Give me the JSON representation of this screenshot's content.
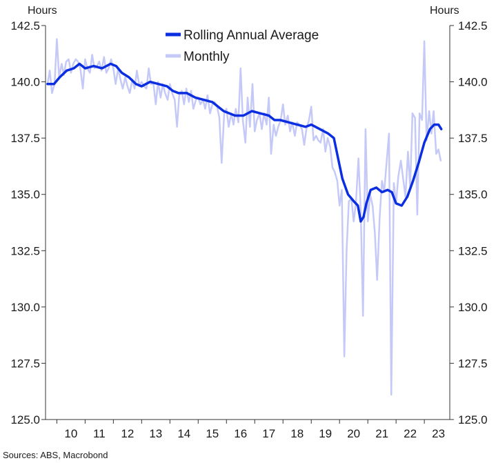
{
  "chart_data": {
    "type": "line",
    "title": "",
    "y_unit_left": "Hours",
    "y_unit_right": "Hours",
    "ylim": [
      125.0,
      142.5
    ],
    "yticks": [
      "125.0",
      "127.5",
      "130.0",
      "132.5",
      "135.0",
      "137.5",
      "140.0",
      "142.5"
    ],
    "xlim": [
      2009.6,
      2023.9
    ],
    "xticks": [
      "10",
      "11",
      "12",
      "13",
      "14",
      "15",
      "16",
      "17",
      "18",
      "19",
      "20",
      "21",
      "22",
      "23"
    ],
    "legend_position": "top-center",
    "grid": false,
    "source": "Sources: ABS, Macrobond",
    "series": [
      {
        "name": "Rolling Annual Average",
        "color": "#0a2ee0",
        "points": [
          [
            2009.67,
            139.9
          ],
          [
            2009.9,
            139.9
          ],
          [
            2010.1,
            140.2
          ],
          [
            2010.35,
            140.5
          ],
          [
            2010.6,
            140.6
          ],
          [
            2010.8,
            140.8
          ],
          [
            2011.0,
            140.6
          ],
          [
            2011.3,
            140.7
          ],
          [
            2011.6,
            140.6
          ],
          [
            2011.9,
            140.8
          ],
          [
            2012.1,
            140.7
          ],
          [
            2012.3,
            140.4
          ],
          [
            2012.55,
            140.2
          ],
          [
            2012.8,
            139.9
          ],
          [
            2013.0,
            139.8
          ],
          [
            2013.3,
            140.0
          ],
          [
            2013.6,
            139.9
          ],
          [
            2013.9,
            139.8
          ],
          [
            2014.1,
            139.6
          ],
          [
            2014.3,
            139.5
          ],
          [
            2014.6,
            139.5
          ],
          [
            2014.9,
            139.3
          ],
          [
            2015.2,
            139.2
          ],
          [
            2015.5,
            139.1
          ],
          [
            2015.7,
            138.9
          ],
          [
            2015.9,
            138.7
          ],
          [
            2016.1,
            138.6
          ],
          [
            2016.3,
            138.5
          ],
          [
            2016.6,
            138.5
          ],
          [
            2016.9,
            138.7
          ],
          [
            2017.2,
            138.6
          ],
          [
            2017.5,
            138.5
          ],
          [
            2017.7,
            138.3
          ],
          [
            2017.9,
            138.3
          ],
          [
            2018.2,
            138.2
          ],
          [
            2018.5,
            138.1
          ],
          [
            2018.8,
            138.0
          ],
          [
            2019.0,
            138.1
          ],
          [
            2019.3,
            137.9
          ],
          [
            2019.6,
            137.7
          ],
          [
            2019.8,
            137.5
          ],
          [
            2019.95,
            136.6
          ],
          [
            2020.1,
            135.7
          ],
          [
            2020.3,
            135.0
          ],
          [
            2020.5,
            134.7
          ],
          [
            2020.65,
            134.5
          ],
          [
            2020.75,
            133.8
          ],
          [
            2020.85,
            134.0
          ],
          [
            2020.95,
            134.6
          ],
          [
            2021.1,
            135.2
          ],
          [
            2021.3,
            135.3
          ],
          [
            2021.5,
            135.1
          ],
          [
            2021.7,
            135.2
          ],
          [
            2021.85,
            135.1
          ],
          [
            2022.0,
            134.6
          ],
          [
            2022.2,
            134.5
          ],
          [
            2022.4,
            134.9
          ],
          [
            2022.6,
            135.6
          ],
          [
            2022.8,
            136.4
          ],
          [
            2023.0,
            137.3
          ],
          [
            2023.2,
            137.9
          ],
          [
            2023.35,
            138.1
          ],
          [
            2023.5,
            138.1
          ],
          [
            2023.6,
            137.9
          ]
        ]
      },
      {
        "name": "Monthly",
        "color": "#c5c9f7",
        "points": [
          [
            2009.67,
            139.9
          ],
          [
            2009.75,
            140.5
          ],
          [
            2009.83,
            139.5
          ],
          [
            2009.92,
            139.9
          ],
          [
            2010.0,
            141.9
          ],
          [
            2010.08,
            140.2
          ],
          [
            2010.17,
            140.8
          ],
          [
            2010.25,
            140.3
          ],
          [
            2010.33,
            140.9
          ],
          [
            2010.42,
            141.0
          ],
          [
            2010.5,
            140.4
          ],
          [
            2010.58,
            140.8
          ],
          [
            2010.67,
            141.0
          ],
          [
            2010.75,
            140.9
          ],
          [
            2010.83,
            140.6
          ],
          [
            2010.92,
            139.7
          ],
          [
            2011.0,
            141.0
          ],
          [
            2011.08,
            140.6
          ],
          [
            2011.17,
            140.4
          ],
          [
            2011.25,
            141.2
          ],
          [
            2011.33,
            140.6
          ],
          [
            2011.42,
            140.7
          ],
          [
            2011.5,
            140.9
          ],
          [
            2011.58,
            140.5
          ],
          [
            2011.67,
            141.1
          ],
          [
            2011.75,
            140.4
          ],
          [
            2011.83,
            140.6
          ],
          [
            2011.92,
            141.0
          ],
          [
            2012.0,
            140.6
          ],
          [
            2012.08,
            139.9
          ],
          [
            2012.17,
            140.6
          ],
          [
            2012.25,
            140.1
          ],
          [
            2012.33,
            139.7
          ],
          [
            2012.42,
            140.2
          ],
          [
            2012.5,
            139.8
          ],
          [
            2012.58,
            139.5
          ],
          [
            2012.67,
            140.1
          ],
          [
            2012.75,
            139.7
          ],
          [
            2012.83,
            140.5
          ],
          [
            2012.92,
            139.8
          ],
          [
            2013.0,
            140.0
          ],
          [
            2013.08,
            139.8
          ],
          [
            2013.17,
            139.7
          ],
          [
            2013.25,
            140.6
          ],
          [
            2013.33,
            139.9
          ],
          [
            2013.42,
            139.9
          ],
          [
            2013.5,
            139.0
          ],
          [
            2013.58,
            140.0
          ],
          [
            2013.67,
            139.3
          ],
          [
            2013.75,
            139.9
          ],
          [
            2013.83,
            139.5
          ],
          [
            2013.92,
            139.2
          ],
          [
            2014.0,
            139.9
          ],
          [
            2014.08,
            139.5
          ],
          [
            2014.17,
            139.2
          ],
          [
            2014.25,
            138.0
          ],
          [
            2014.33,
            139.4
          ],
          [
            2014.42,
            139.6
          ],
          [
            2014.5,
            139.0
          ],
          [
            2014.58,
            139.7
          ],
          [
            2014.67,
            139.1
          ],
          [
            2014.75,
            139.6
          ],
          [
            2014.83,
            138.8
          ],
          [
            2014.92,
            139.2
          ],
          [
            2015.0,
            139.3
          ],
          [
            2015.08,
            139.0
          ],
          [
            2015.17,
            139.2
          ],
          [
            2015.25,
            138.8
          ],
          [
            2015.33,
            139.4
          ],
          [
            2015.42,
            138.6
          ],
          [
            2015.5,
            139.0
          ],
          [
            2015.58,
            139.1
          ],
          [
            2015.67,
            138.9
          ],
          [
            2015.75,
            138.4
          ],
          [
            2015.83,
            136.4
          ],
          [
            2015.92,
            138.6
          ],
          [
            2016.0,
            138.8
          ],
          [
            2016.08,
            138.0
          ],
          [
            2016.17,
            138.6
          ],
          [
            2016.25,
            138.1
          ],
          [
            2016.33,
            138.8
          ],
          [
            2016.42,
            138.2
          ],
          [
            2016.5,
            140.6
          ],
          [
            2016.58,
            138.3
          ],
          [
            2016.67,
            137.3
          ],
          [
            2016.75,
            139.3
          ],
          [
            2016.83,
            138.0
          ],
          [
            2016.92,
            139.9
          ],
          [
            2017.0,
            137.8
          ],
          [
            2017.08,
            138.3
          ],
          [
            2017.17,
            138.6
          ],
          [
            2017.25,
            137.9
          ],
          [
            2017.33,
            138.6
          ],
          [
            2017.42,
            138.1
          ],
          [
            2017.5,
            139.3
          ],
          [
            2017.58,
            136.8
          ],
          [
            2017.67,
            138.1
          ],
          [
            2017.75,
            137.6
          ],
          [
            2017.83,
            138.0
          ],
          [
            2017.92,
            138.3
          ],
          [
            2018.0,
            139.0
          ],
          [
            2018.08,
            138.1
          ],
          [
            2018.17,
            138.5
          ],
          [
            2018.25,
            137.8
          ],
          [
            2018.33,
            138.2
          ],
          [
            2018.42,
            137.6
          ],
          [
            2018.5,
            138.2
          ],
          [
            2018.58,
            138.1
          ],
          [
            2018.67,
            137.9
          ],
          [
            2018.75,
            137.2
          ],
          [
            2018.83,
            137.9
          ],
          [
            2018.92,
            138.3
          ],
          [
            2019.0,
            138.9
          ],
          [
            2019.08,
            137.4
          ],
          [
            2019.17,
            137.6
          ],
          [
            2019.25,
            137.4
          ],
          [
            2019.33,
            137.3
          ],
          [
            2019.42,
            137.9
          ],
          [
            2019.5,
            136.9
          ],
          [
            2019.58,
            137.5
          ],
          [
            2019.67,
            137.1
          ],
          [
            2019.75,
            136.2
          ],
          [
            2019.83,
            136.0
          ],
          [
            2019.92,
            135.6
          ],
          [
            2020.0,
            134.5
          ],
          [
            2020.08,
            135.2
          ],
          [
            2020.17,
            127.8
          ],
          [
            2020.25,
            132.5
          ],
          [
            2020.33,
            134.7
          ],
          [
            2020.42,
            134.8
          ],
          [
            2020.5,
            133.8
          ],
          [
            2020.58,
            134.6
          ],
          [
            2020.67,
            136.6
          ],
          [
            2020.75,
            134.3
          ],
          [
            2020.83,
            129.6
          ],
          [
            2020.92,
            137.9
          ],
          [
            2021.0,
            133.8
          ],
          [
            2021.08,
            135.0
          ],
          [
            2021.17,
            134.5
          ],
          [
            2021.25,
            133.3
          ],
          [
            2021.33,
            131.2
          ],
          [
            2021.42,
            134.0
          ],
          [
            2021.5,
            135.6
          ],
          [
            2021.58,
            135.1
          ],
          [
            2021.67,
            136.5
          ],
          [
            2021.75,
            137.7
          ],
          [
            2021.83,
            126.1
          ],
          [
            2021.92,
            135.5
          ],
          [
            2022.0,
            134.6
          ],
          [
            2022.08,
            135.8
          ],
          [
            2022.17,
            136.5
          ],
          [
            2022.25,
            135.7
          ],
          [
            2022.33,
            134.9
          ],
          [
            2022.42,
            136.9
          ],
          [
            2022.5,
            135.3
          ],
          [
            2022.58,
            138.6
          ],
          [
            2022.67,
            138.4
          ],
          [
            2022.75,
            134.1
          ],
          [
            2022.83,
            138.6
          ],
          [
            2022.92,
            138.3
          ],
          [
            2023.0,
            141.8
          ],
          [
            2023.08,
            137.4
          ],
          [
            2023.17,
            138.7
          ],
          [
            2023.25,
            137.7
          ],
          [
            2023.33,
            138.7
          ],
          [
            2023.42,
            136.8
          ],
          [
            2023.5,
            137.0
          ],
          [
            2023.58,
            136.5
          ]
        ]
      }
    ]
  }
}
